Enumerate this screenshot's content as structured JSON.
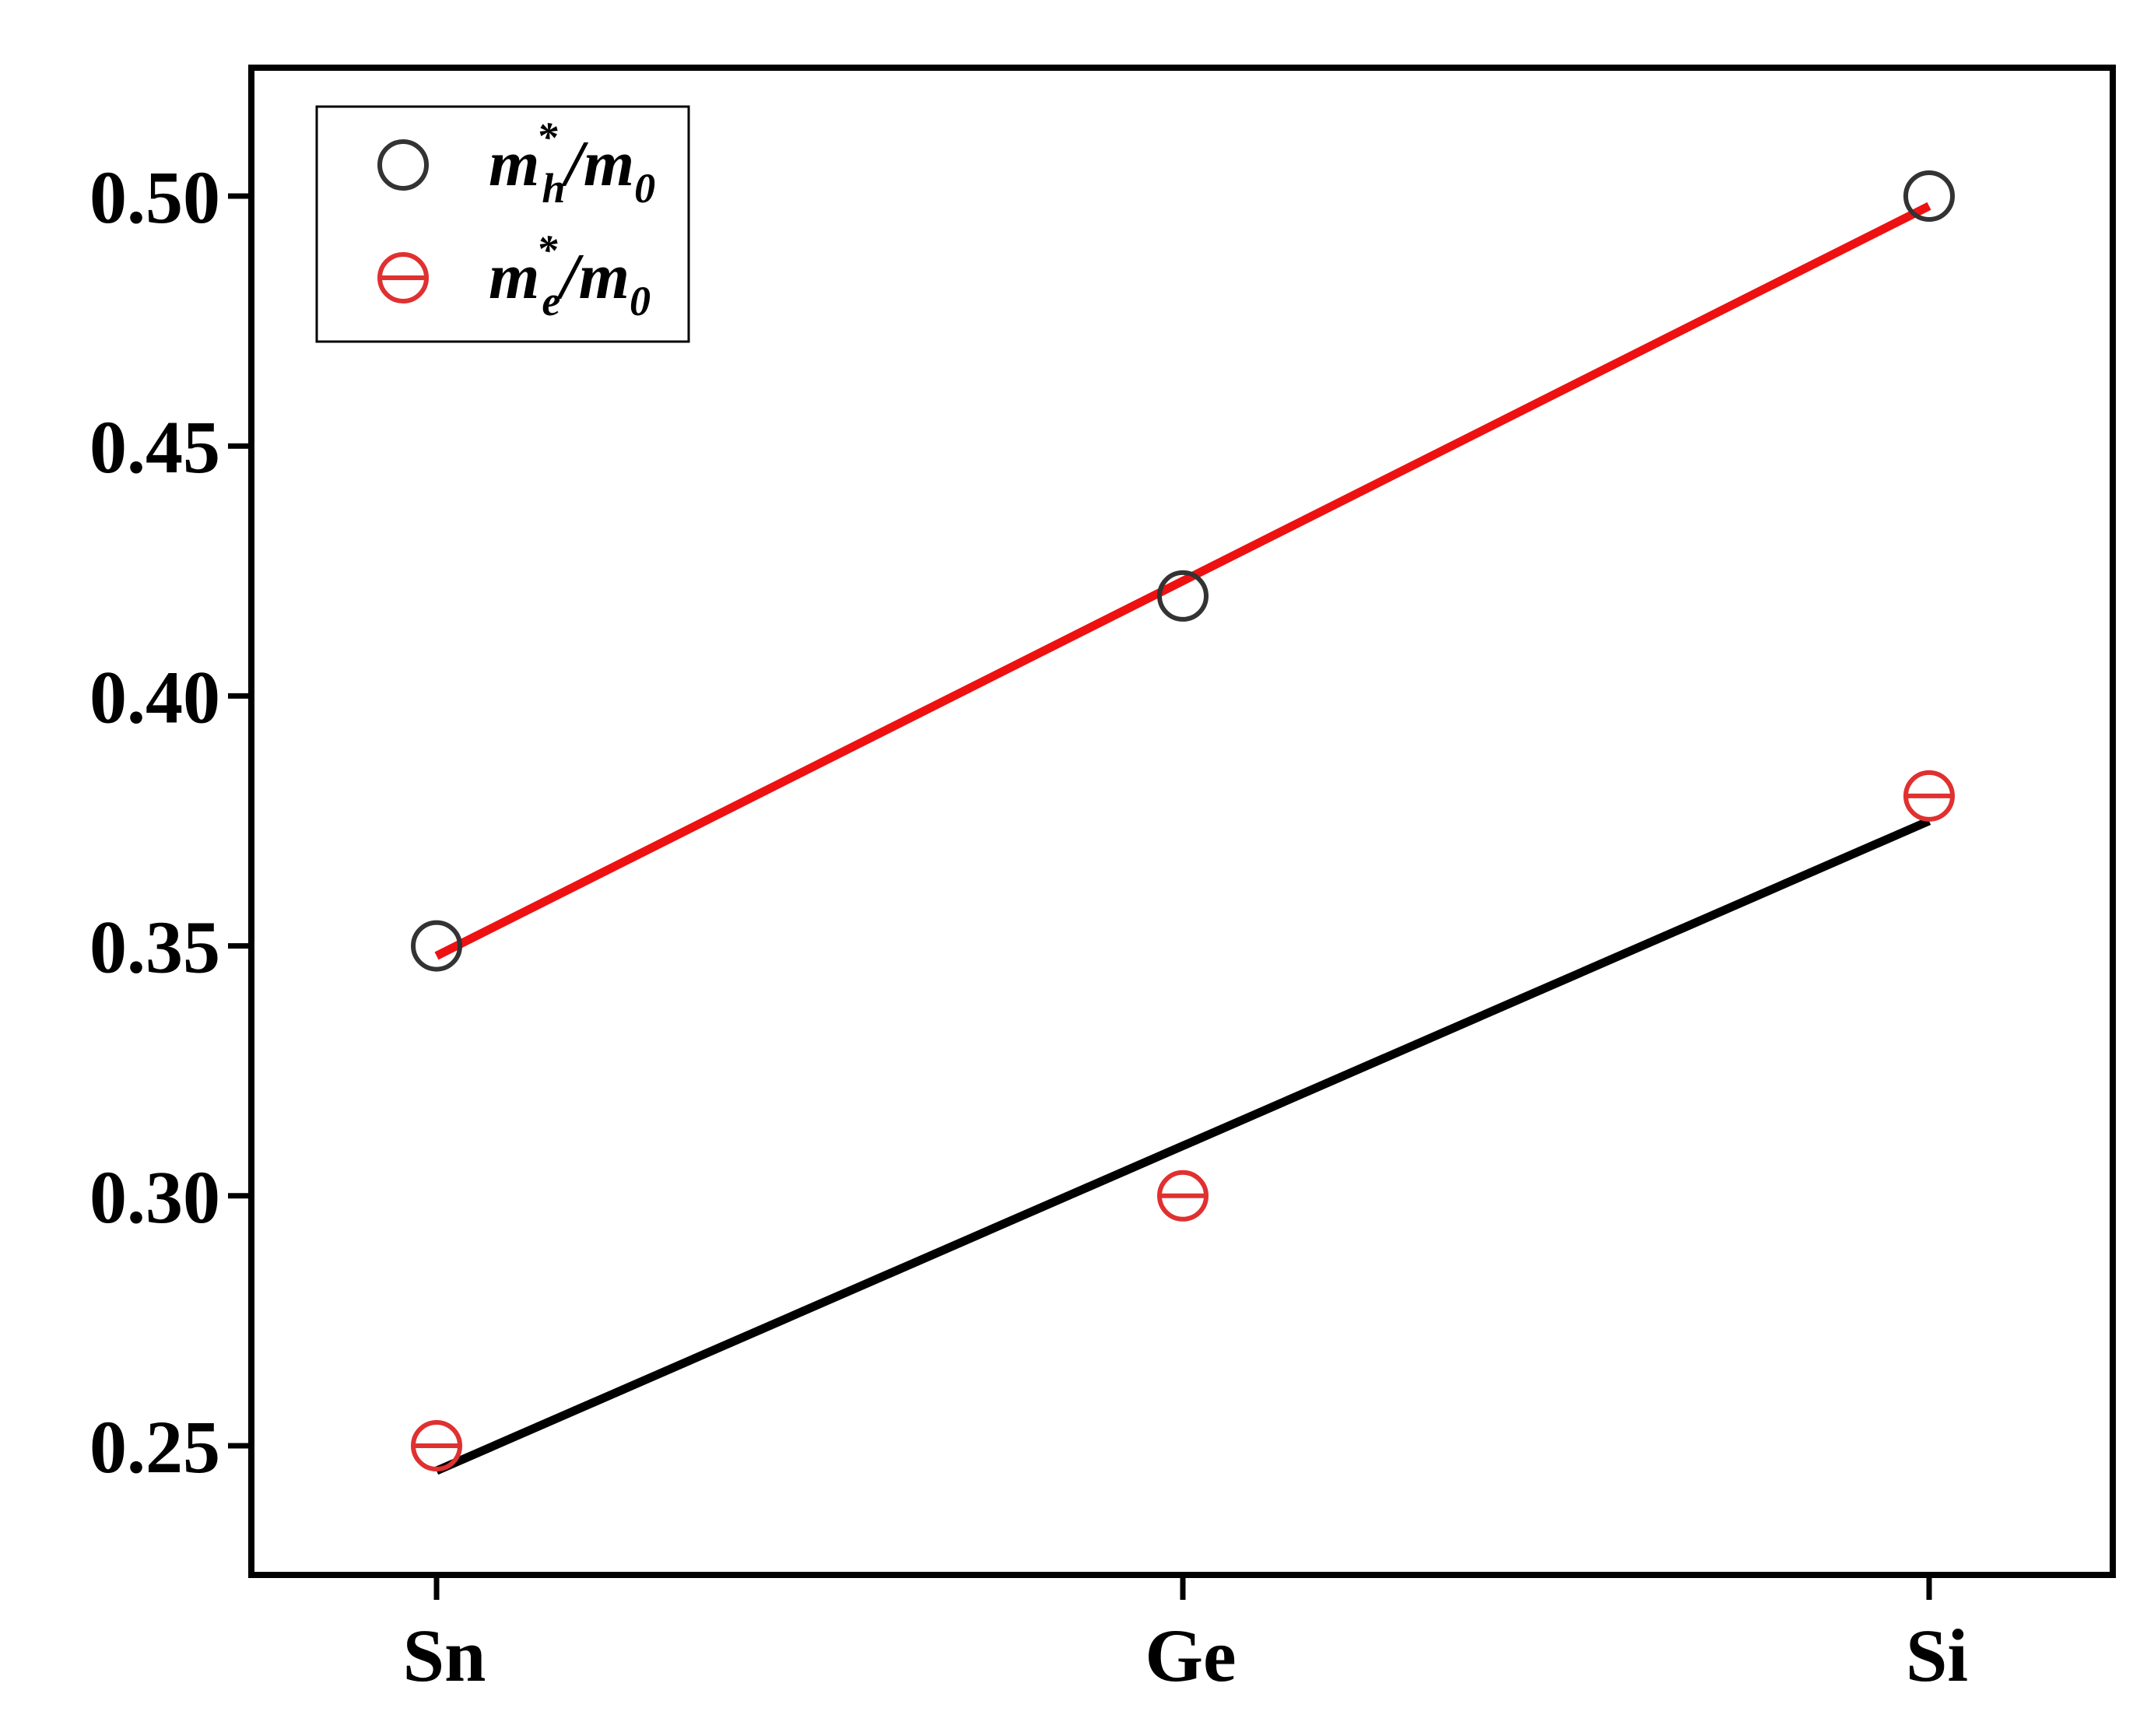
{
  "chart_data": {
    "type": "scatter",
    "categories": [
      "Sn",
      "Ge",
      "Si"
    ],
    "ylim": [
      0.225,
      0.525
    ],
    "yticks": [
      0.25,
      0.3,
      0.35,
      0.4,
      0.45,
      0.5
    ],
    "ytick_labels": [
      "0.25",
      "0.30",
      "0.35",
      "0.40",
      "0.45",
      "0.50"
    ],
    "title": "",
    "xlabel": "",
    "ylabel": "",
    "grid": false,
    "legend_position": "top-left",
    "series": [
      {
        "id": "hole",
        "legend_base": "m",
        "legend_sub": "h",
        "legend_sup": "*",
        "legend_tail": "/m",
        "legend_tail_sub": "0",
        "marker": "open-circle",
        "marker_color": "#333333",
        "values": [
          0.35,
          0.42,
          0.5
        ],
        "fit_line": {
          "color": "#ee1111",
          "y_start": 0.348,
          "y_end": 0.498
        }
      },
      {
        "id": "electron",
        "legend_base": "m",
        "legend_sub": "e",
        "legend_sup": "*",
        "legend_tail": "/m",
        "legend_tail_sub": "0",
        "marker": "circle-with-bar",
        "marker_color": "#e03030",
        "values": [
          0.25,
          0.3,
          0.38
        ],
        "fit_line": {
          "color": "#000000",
          "y_start": 0.245,
          "y_end": 0.375
        }
      }
    ]
  }
}
